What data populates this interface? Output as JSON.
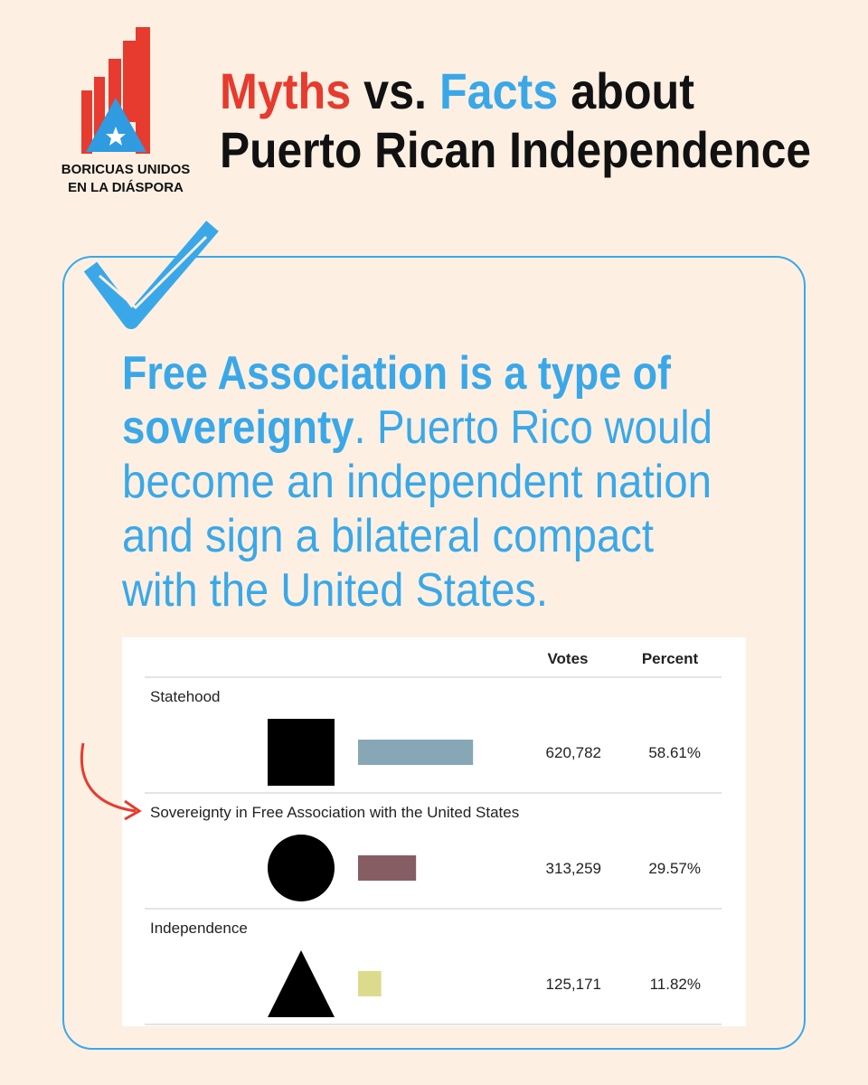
{
  "logo": {
    "line1": "BORICUAS UNIDOS",
    "line2": "EN LA DIÁSPORA"
  },
  "title": {
    "myths": "Myths",
    "vs": "vs.",
    "facts": "Facts",
    "about": "about",
    "line2": "Puerto Rican Independence"
  },
  "body": {
    "bold_lines": [
      "Free Association is a type of",
      "sovereignty"
    ],
    "lines": [
      ". Puerto Rico would",
      "become an independent nation",
      "and sign a bilateral compact",
      "with the United States."
    ]
  },
  "table": {
    "headers": [
      "Votes",
      "Percent"
    ],
    "rows": [
      {
        "name": "Statehood",
        "symbol": "square",
        "votes": "620,782",
        "percent": {
          "value": 58.61,
          "label": "58.61%"
        },
        "color": "#87a6b6"
      },
      {
        "name": "Sovereignty in Free Association with the United States",
        "symbol": "circle",
        "votes": "313,259",
        "percent": {
          "value": 29.57,
          "label": "29.57%"
        },
        "color": "#875d64"
      },
      {
        "name": "Independence",
        "symbol": "triangle",
        "votes": "125,171",
        "percent": {
          "value": 11.82,
          "label": "11.82%"
        },
        "color": "#dcdb8d"
      }
    ]
  }
}
